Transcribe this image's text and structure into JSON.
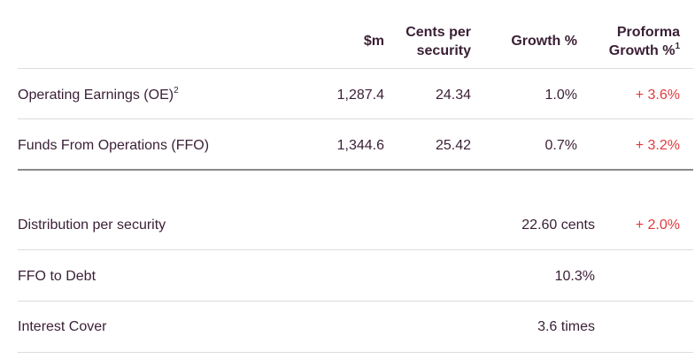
{
  "header": {
    "col_m": "$m",
    "col_cents_line1": "Cents per",
    "col_cents_line2": "security",
    "col_growth": "Growth %",
    "col_proforma_line1": "Proforma",
    "col_proforma_line2": "Growth %",
    "col_proforma_sup": "1"
  },
  "rows": [
    {
      "label": "Operating Earnings (OE)",
      "label_sup": "2",
      "m": "1,287.4",
      "cents": "24.34",
      "growth": "1.0%",
      "proforma": "+ 3.6%"
    },
    {
      "label": "Funds From Operations (FFO)",
      "m": "1,344.6",
      "cents": "25.42",
      "growth": "0.7%",
      "proforma": "+ 3.2%"
    }
  ],
  "lower_rows": [
    {
      "label": "Distribution per security",
      "value": "22.60 cents",
      "proforma": "+ 2.0%"
    },
    {
      "label": "FFO to Debt",
      "value": "10.3%"
    },
    {
      "label": "Interest Cover",
      "value": "3.6 times"
    }
  ],
  "colors": {
    "text": "#3a1f35",
    "positive_growth": "#e03a3e"
  }
}
